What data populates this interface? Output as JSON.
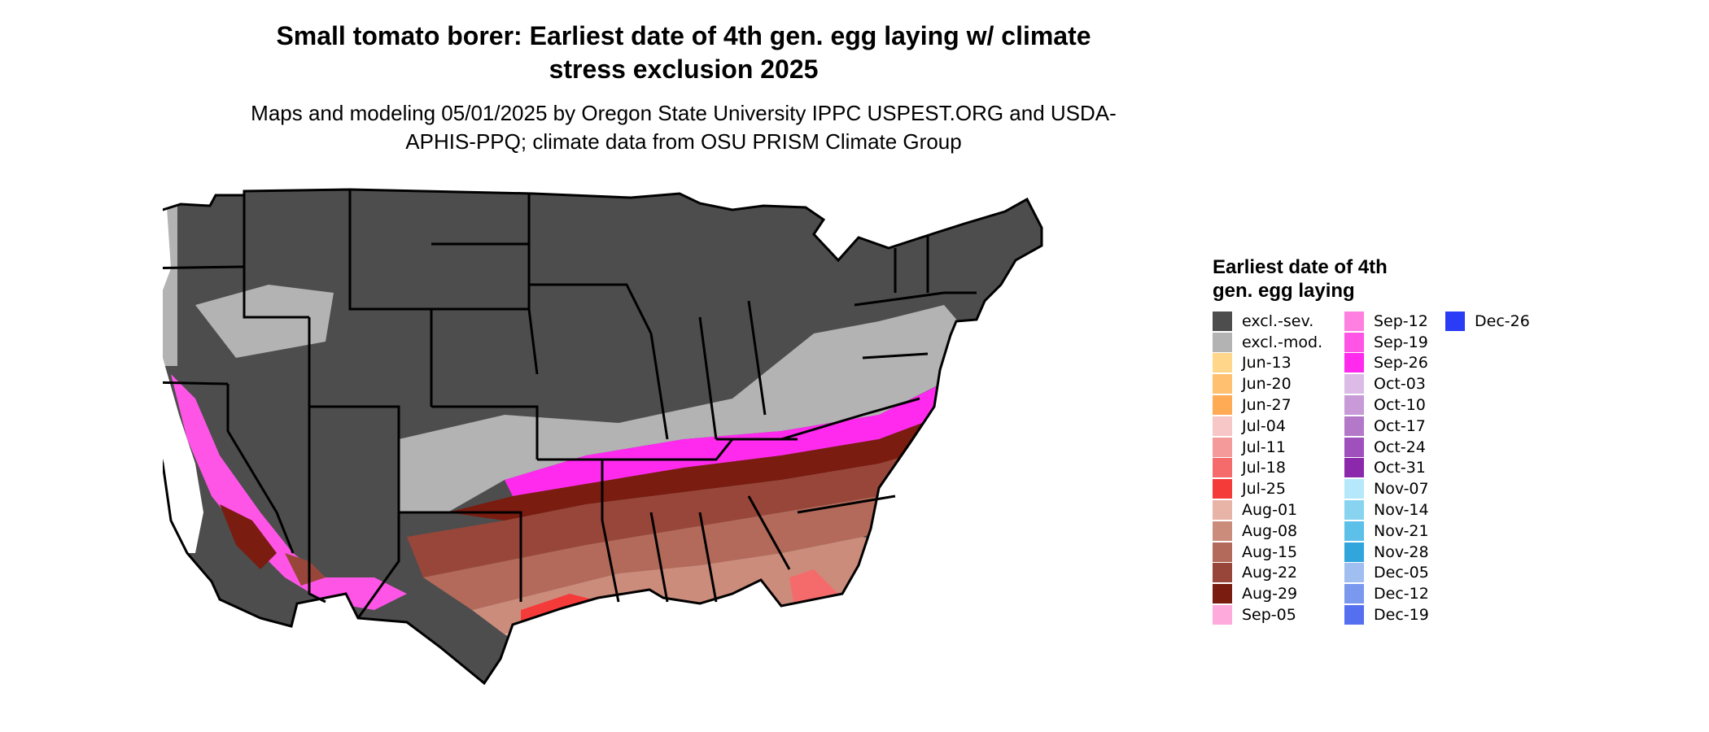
{
  "title": "Small tomato borer: Earliest date of 4th gen. egg laying w/ climate stress exclusion 2025",
  "subtitle": "Maps and modeling 05/01/2025 by Oregon State University IPPC USPEST.ORG and USDA-APHIS-PPQ; climate data from OSU PRISM Climate Group",
  "legend": {
    "title": "Earliest date of 4th gen. egg laying",
    "items": [
      {
        "label": "excl.-sev.",
        "color": "#4d4d4d"
      },
      {
        "label": "excl.-mod.",
        "color": "#b3b3b3"
      },
      {
        "label": "Jun-13",
        "color": "#ffd68a"
      },
      {
        "label": "Jun-20",
        "color": "#ffc070"
      },
      {
        "label": "Jun-27",
        "color": "#ffaa55"
      },
      {
        "label": "Jul-04",
        "color": "#f7c6c6"
      },
      {
        "label": "Jul-11",
        "color": "#f59a9a"
      },
      {
        "label": "Jul-18",
        "color": "#f56b6b"
      },
      {
        "label": "Jul-25",
        "color": "#f53a3a"
      },
      {
        "label": "Aug-01",
        "color": "#e8b4a8"
      },
      {
        "label": "Aug-08",
        "color": "#cc8c7c"
      },
      {
        "label": "Aug-15",
        "color": "#b36a5a"
      },
      {
        "label": "Aug-22",
        "color": "#99463a"
      },
      {
        "label": "Aug-29",
        "color": "#7a1c10"
      },
      {
        "label": "Sep-05",
        "color": "#ffaadd"
      },
      {
        "label": "Sep-12",
        "color": "#ff80e0"
      },
      {
        "label": "Sep-19",
        "color": "#ff55e6"
      },
      {
        "label": "Sep-26",
        "color": "#ff2aee"
      },
      {
        "label": "Oct-03",
        "color": "#dcbce6"
      },
      {
        "label": "Oct-10",
        "color": "#c89ad8"
      },
      {
        "label": "Oct-17",
        "color": "#b478c8"
      },
      {
        "label": "Oct-24",
        "color": "#a050bc"
      },
      {
        "label": "Oct-31",
        "color": "#8c28ac"
      },
      {
        "label": "Nov-07",
        "color": "#b4e8fa"
      },
      {
        "label": "Nov-14",
        "color": "#88d4f0"
      },
      {
        "label": "Nov-21",
        "color": "#5cc0e8"
      },
      {
        "label": "Nov-28",
        "color": "#30a6dc"
      },
      {
        "label": "Dec-05",
        "color": "#a0bef0"
      },
      {
        "label": "Dec-12",
        "color": "#7a98ee"
      },
      {
        "label": "Dec-19",
        "color": "#5470f0"
      },
      {
        "label": "Dec-26",
        "color": "#2a3cf6"
      }
    ]
  }
}
